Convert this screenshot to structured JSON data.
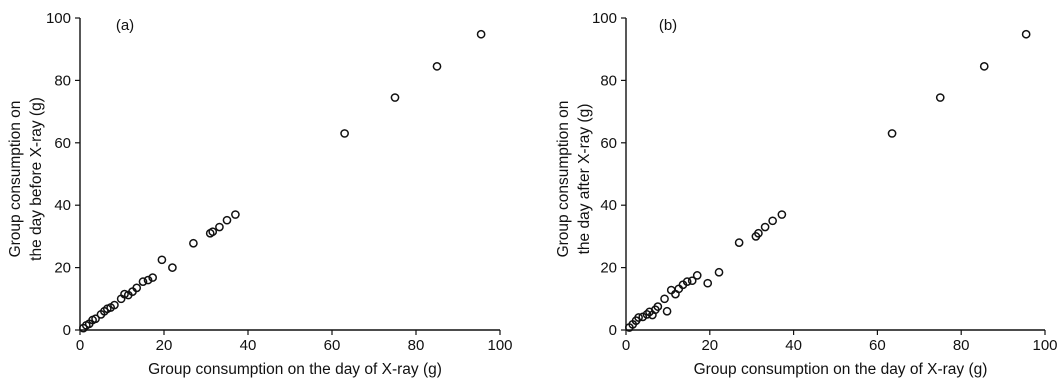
{
  "chart_data": [
    {
      "type": "scatter",
      "panel_label": "(a)",
      "xlabel": "Group consumption on the day of X-ray (g)",
      "ylabel_lines": [
        "Group consumption on",
        "the day before X-ray (g)"
      ],
      "xlim": [
        0,
        100
      ],
      "ylim": [
        0,
        100
      ],
      "xticks": [
        "0",
        "20",
        "40",
        "60",
        "80",
        "100"
      ],
      "yticks": [
        "0",
        "20",
        "40",
        "60",
        "80",
        "100"
      ],
      "grid": false,
      "points": [
        [
          0.8,
          0.6
        ],
        [
          1.5,
          1.5
        ],
        [
          2.2,
          2.0
        ],
        [
          3.0,
          3.2
        ],
        [
          3.7,
          3.6
        ],
        [
          5.0,
          5.0
        ],
        [
          5.8,
          6.0
        ],
        [
          6.5,
          6.8
        ],
        [
          7.3,
          7.2
        ],
        [
          8.2,
          8.0
        ],
        [
          9.8,
          10.0
        ],
        [
          10.6,
          11.5
        ],
        [
          11.5,
          11.2
        ],
        [
          12.5,
          12.3
        ],
        [
          13.5,
          13.5
        ],
        [
          15.0,
          15.5
        ],
        [
          16.2,
          16.0
        ],
        [
          17.3,
          16.8
        ],
        [
          19.5,
          22.5
        ],
        [
          22.0,
          20.0
        ],
        [
          27.0,
          27.8
        ],
        [
          31.0,
          31.0
        ],
        [
          31.6,
          31.5
        ],
        [
          33.2,
          33.0
        ],
        [
          35.0,
          35.2
        ],
        [
          37.0,
          37.0
        ],
        [
          63.0,
          63.0
        ],
        [
          75.0,
          74.5
        ],
        [
          85.0,
          84.5
        ],
        [
          95.5,
          94.8
        ]
      ]
    },
    {
      "type": "scatter",
      "panel_label": "(b)",
      "xlabel": "Group consumption on the day of X-ray (g)",
      "ylabel_lines": [
        "Group consumption on",
        "the day after X-ray (g)"
      ],
      "xlim": [
        0,
        100
      ],
      "ylim": [
        0,
        100
      ],
      "xticks": [
        "0",
        "20",
        "40",
        "60",
        "80",
        "100"
      ],
      "yticks": [
        "0",
        "20",
        "40",
        "60",
        "80",
        "100"
      ],
      "grid": false,
      "points": [
        [
          0.8,
          0.8
        ],
        [
          1.6,
          1.8
        ],
        [
          2.4,
          3.0
        ],
        [
          3.0,
          4.0
        ],
        [
          4.0,
          4.2
        ],
        [
          5.0,
          5.0
        ],
        [
          5.6,
          5.8
        ],
        [
          6.3,
          4.8
        ],
        [
          7.0,
          6.5
        ],
        [
          7.6,
          7.5
        ],
        [
          9.2,
          10.0
        ],
        [
          9.8,
          6.0
        ],
        [
          10.8,
          12.8
        ],
        [
          11.8,
          11.5
        ],
        [
          12.6,
          13.2
        ],
        [
          13.6,
          14.5
        ],
        [
          14.6,
          15.5
        ],
        [
          15.8,
          15.8
        ],
        [
          17.0,
          17.5
        ],
        [
          19.5,
          15.0
        ],
        [
          22.2,
          18.5
        ],
        [
          27.0,
          28.0
        ],
        [
          31.0,
          30.0
        ],
        [
          31.6,
          31.0
        ],
        [
          33.2,
          33.0
        ],
        [
          35.0,
          35.0
        ],
        [
          37.2,
          37.0
        ],
        [
          63.5,
          63.0
        ],
        [
          75.0,
          74.5
        ],
        [
          85.5,
          84.5
        ],
        [
          95.5,
          94.8
        ]
      ]
    }
  ]
}
